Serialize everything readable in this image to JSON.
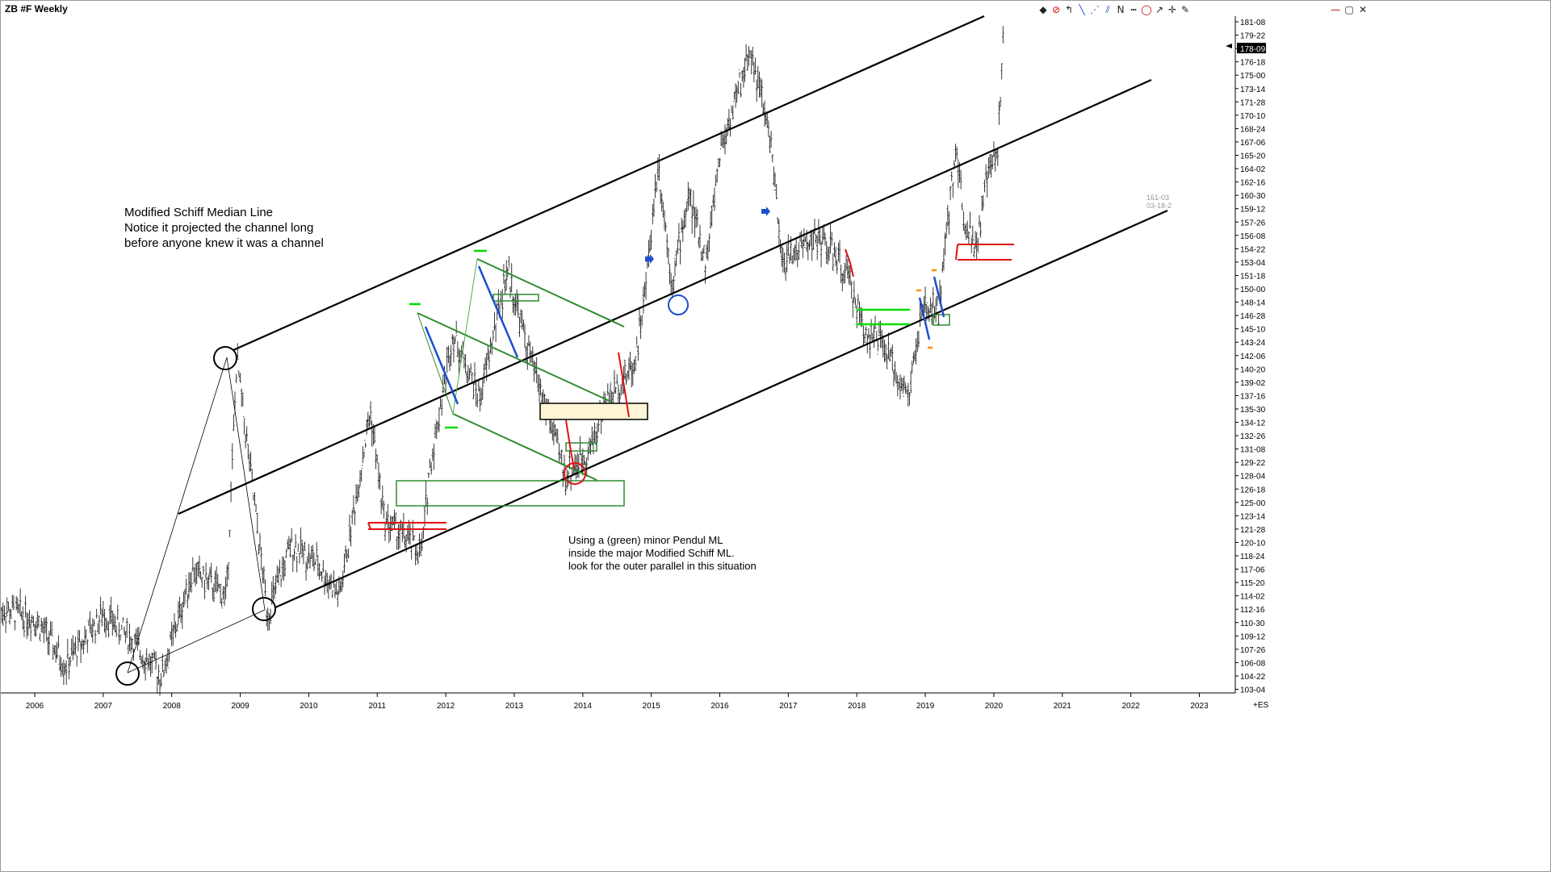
{
  "window": {
    "title": "ZB #F Weekly"
  },
  "toolbar": {
    "icons": [
      "layers-icon",
      "no-symbol-icon",
      "ruler-icon",
      "trend-line-icon",
      "andrews-fork-icon",
      "parallel-lines-icon",
      "n-pattern-icon",
      "dotted-line-icon",
      "circle-icon",
      "arrow-icon",
      "crosshair-icon",
      "pencil-icon",
      "close-icon",
      "restore-icon",
      "window-close-icon"
    ]
  },
  "chart_data": {
    "type": "line",
    "title": "ZB #F Weekly",
    "x_labels": [
      "2006",
      "2007",
      "2008",
      "2009",
      "2010",
      "2011",
      "2012",
      "2013",
      "2014",
      "2015",
      "2016",
      "2017",
      "2018",
      "2019",
      "2020",
      "2021",
      "2022",
      "2023"
    ],
    "y_tick_labels": [
      "181-08",
      "179-22",
      "178-09",
      "176-18",
      "175-00",
      "173-14",
      "171-28",
      "170-10",
      "168-24",
      "167-06",
      "165-20",
      "164-02",
      "162-16",
      "160-30",
      "159-12",
      "157-26",
      "156-08",
      "154-22",
      "153-04",
      "151-18",
      "150-00",
      "148-14",
      "146-28",
      "145-10",
      "143-24",
      "142-06",
      "140-20",
      "139-02",
      "137-16",
      "135-30",
      "134-12",
      "132-26",
      "131-08",
      "129-22",
      "128-04",
      "126-18",
      "125-00",
      "123-14",
      "121-28",
      "120-10",
      "118-24",
      "117-06",
      "115-20",
      "114-02",
      "112-16",
      "110-30",
      "109-12",
      "107-26",
      "106-08",
      "104-22",
      "103-04"
    ],
    "last_price_label": "178-09",
    "ylim": [
      103.125,
      181.25
    ],
    "price_series": {
      "x": [
        2005.5,
        2006.0,
        2006.45,
        2007.0,
        2007.35,
        2007.85,
        2008.3,
        2008.8,
        2008.95,
        2009.4,
        2009.75,
        2010.1,
        2010.45,
        2010.9,
        2011.1,
        2011.65,
        2011.75,
        2012.1,
        2012.5,
        2012.9,
        2013.2,
        2013.5,
        2013.65,
        2013.75,
        2014.1,
        2014.3,
        2014.75,
        2014.9,
        2015.1,
        2015.3,
        2015.55,
        2015.8,
        2016.0,
        2016.45,
        2016.75,
        2016.9,
        2017.3,
        2017.55,
        2017.9,
        2018.1,
        2018.35,
        2018.75,
        2018.95,
        2019.2,
        2019.45,
        2019.55,
        2019.75,
        2019.9,
        2020.05,
        2020.15
      ],
      "y": [
        112.0,
        111.0,
        105.5,
        111.5,
        109.0,
        104.2,
        116.5,
        113.5,
        141.0,
        111.5,
        119.5,
        117.5,
        113.5,
        135.0,
        122.5,
        118.5,
        127.5,
        144.0,
        136.5,
        151.5,
        142.0,
        134.5,
        130.0,
        127.5,
        130.5,
        135.5,
        140.5,
        148.0,
        164.0,
        150.0,
        160.0,
        152.0,
        165.0,
        177.0,
        166.0,
        152.0,
        155.0,
        154.5,
        150.0,
        144.5,
        143.0,
        136.5,
        146.5,
        147.0,
        166.0,
        158.0,
        154.0,
        162.0,
        165.0,
        179.5
      ]
    },
    "annotations": [
      {
        "text": "Modified Schiff Median Line\nNotice it projected the channel long\nbefore anyone knew it was a channel"
      },
      {
        "text": "Using a (green) minor Pendul ML\ninside the major Modified Schiff ML.\nlook for the outer parallel in this situation"
      },
      {
        "text": "161-03\n03-18-2"
      }
    ],
    "corner_label": "+ES",
    "colors": {
      "price": "#222222",
      "median_lines": "#000000",
      "minor_fork": "#2e8b2e",
      "highlight_box": "#fdf5d6",
      "red_marks": "#e01010",
      "blue_marks": "#1c4fd0",
      "bright_green_marks": "#00dd00"
    },
    "grid": false
  }
}
